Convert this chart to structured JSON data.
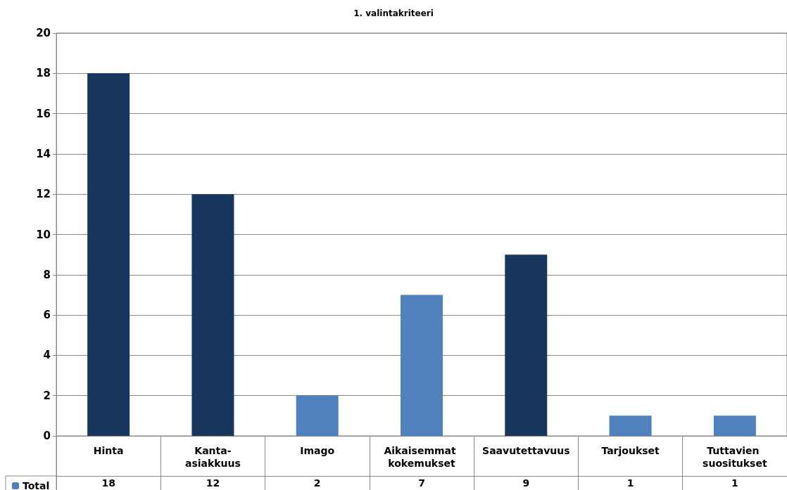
{
  "chart_data": {
    "type": "bar",
    "title": "1. valintakriteeri",
    "categories": [
      "Hinta",
      "Kanta-asiakkuus",
      "Imago",
      "Aikaisemmat kokemukset",
      "Saavutettavuus",
      "Tarjoukset",
      "Tuttavien suositukset"
    ],
    "series": [
      {
        "name": "Total",
        "color": "#4f81bd",
        "colors": [
          "#17375e",
          "#17375e",
          "#4f81bd",
          "#4f81bd",
          "#17375e",
          "#4f81bd",
          "#4f81bd"
        ],
        "values": [
          18,
          12,
          2,
          7,
          9,
          1,
          1
        ]
      }
    ],
    "ylim": [
      0,
      20
    ],
    "yticks": [
      0,
      2,
      4,
      6,
      8,
      10,
      12,
      14,
      16,
      18,
      20
    ],
    "grid": "y",
    "data_labels": true,
    "legend": "bottom left"
  }
}
